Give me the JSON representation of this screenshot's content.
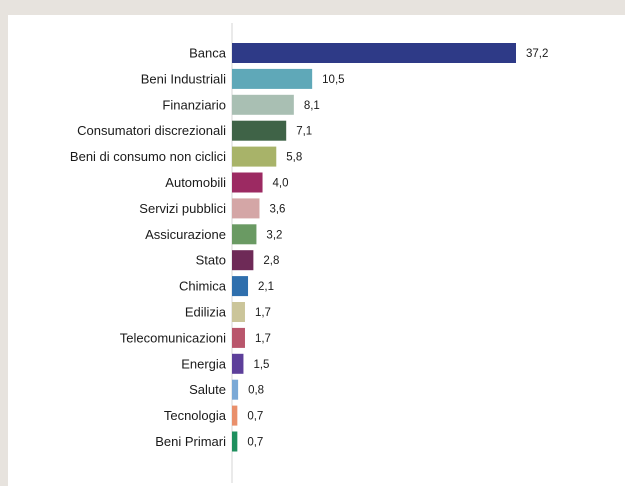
{
  "chart_data": {
    "type": "bar",
    "orientation": "horizontal",
    "categories": [
      "Banca",
      "Beni Industriali",
      "Finanziario",
      "Consumatori discrezionali",
      "Beni di consumo non ciclici",
      "Automobili",
      "Servizi pubblici",
      "Assicurazione",
      "Stato",
      "Chimica",
      "Edilizia",
      "Telecomunicazioni",
      "Energia",
      "Salute",
      "Tecnologia",
      "Beni Primari"
    ],
    "values": [
      37.2,
      10.5,
      8.1,
      7.1,
      5.8,
      4.0,
      3.6,
      3.2,
      2.8,
      2.1,
      1.7,
      1.7,
      1.5,
      0.8,
      0.7,
      0.7
    ],
    "value_labels": [
      "37,2",
      "10,5",
      "8,1",
      "7,1",
      "5,8",
      "4,0",
      "3,6",
      "3,2",
      "2,8",
      "2,1",
      "1,7",
      "1,7",
      "1,5",
      "0,8",
      "0,7",
      "0,7"
    ],
    "colors": [
      "#2e3a87",
      "#5fa8b8",
      "#a9bfb3",
      "#3f6347",
      "#a8b369",
      "#9c2a62",
      "#d4a6a6",
      "#6a9a63",
      "#6e2a57",
      "#2f6fad",
      "#cbc59a",
      "#b9566c",
      "#5d3f9a",
      "#7ba9d6",
      "#e98f6b",
      "#1e8f5e"
    ],
    "title": "",
    "xlabel": "",
    "ylabel": "",
    "xlim": [
      0,
      37.2
    ],
    "grid": false,
    "legend": "none"
  }
}
